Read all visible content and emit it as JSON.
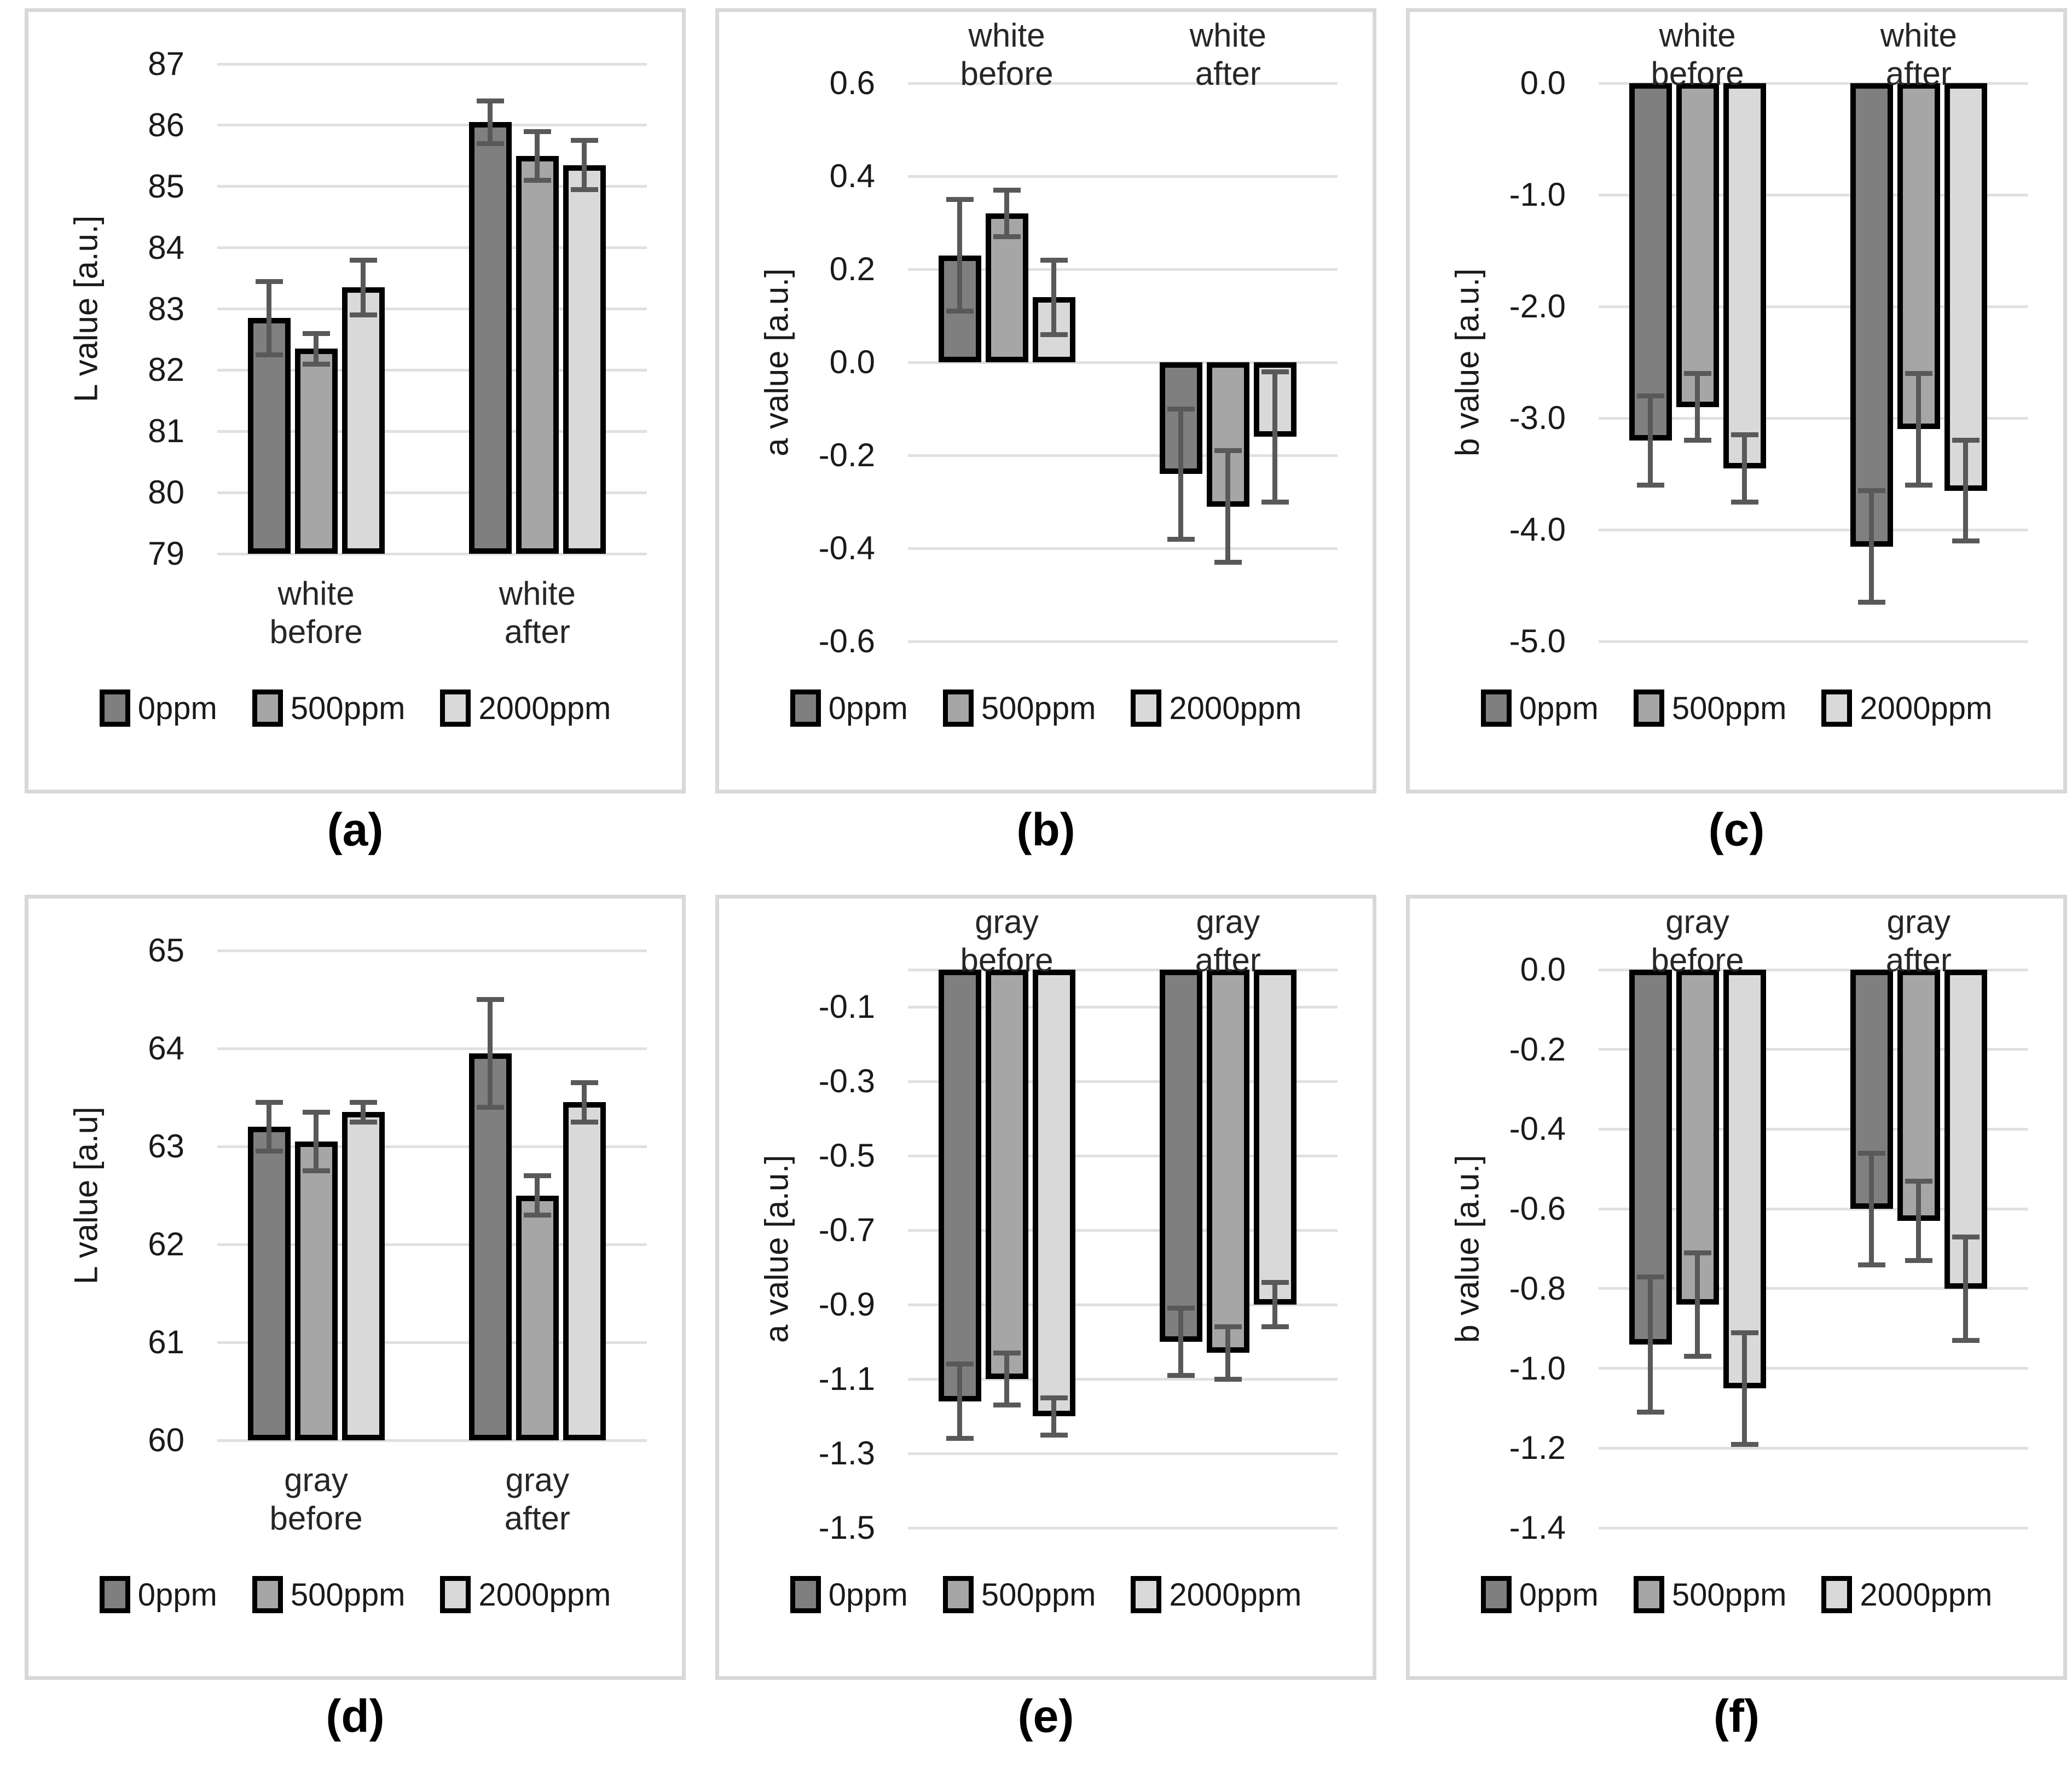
{
  "figure": {
    "rows": 2,
    "cols": 3,
    "panel_order": [
      "a",
      "b",
      "c",
      "d",
      "e",
      "f"
    ]
  },
  "palette": {
    "series_fills": [
      "#7f7f7f",
      "#a6a6a6",
      "#d9d9d9"
    ],
    "error_bar": "#595959",
    "gridline": "#e0e0e0",
    "bar_border": "#000000",
    "panel_border": "#d8d8d8",
    "background": "#ffffff"
  },
  "legend_labels": [
    "0ppm",
    "500ppm",
    "2000ppm"
  ],
  "chart_data": [
    {
      "id": "a",
      "type": "bar",
      "caption": "(a)",
      "ylabel": "L value [a.u.]",
      "categories": [
        "white before",
        "white after"
      ],
      "category_label_position": "bottom",
      "legend": [
        "0ppm",
        "500ppm",
        "2000ppm"
      ],
      "legend_position": "bottom",
      "grid": true,
      "ylim": [
        79,
        87
      ],
      "baseline": 79,
      "yticks": [
        {
          "v": 87,
          "label": "87"
        },
        {
          "v": 86,
          "label": "86"
        },
        {
          "v": 85,
          "label": "85"
        },
        {
          "v": 84,
          "label": "84"
        },
        {
          "v": 83,
          "label": "83"
        },
        {
          "v": 82,
          "label": "82"
        },
        {
          "v": 81,
          "label": "81"
        },
        {
          "v": 80,
          "label": "80"
        },
        {
          "v": 79,
          "label": "79"
        }
      ],
      "series": [
        {
          "name": "0ppm",
          "values": [
            82.85,
            86.05
          ],
          "errors": [
            0.6,
            0.35
          ]
        },
        {
          "name": "500ppm",
          "values": [
            82.35,
            85.5
          ],
          "errors": [
            0.25,
            0.4
          ]
        },
        {
          "name": "2000ppm",
          "values": [
            83.35,
            85.35
          ],
          "errors": [
            0.45,
            0.4
          ]
        }
      ]
    },
    {
      "id": "b",
      "type": "bar",
      "caption": "(b)",
      "ylabel": "a value [a.u.]",
      "categories": [
        "white before",
        "white after"
      ],
      "category_label_position": "top",
      "legend": [
        "0ppm",
        "500ppm",
        "2000ppm"
      ],
      "legend_position": "bottom",
      "grid": true,
      "ylim": [
        -0.6,
        0.6
      ],
      "baseline": 0,
      "yticks": [
        {
          "v": 0.6,
          "label": "0.6"
        },
        {
          "v": 0.4,
          "label": "0.4"
        },
        {
          "v": 0.2,
          "label": "0.2"
        },
        {
          "v": 0.0,
          "label": "0.0"
        },
        {
          "v": -0.2,
          "label": "-0.2"
        },
        {
          "v": -0.4,
          "label": "-0.4"
        },
        {
          "v": -0.6,
          "label": "-0.6"
        }
      ],
      "series": [
        {
          "name": "0ppm",
          "values": [
            0.23,
            -0.24
          ],
          "errors": [
            0.12,
            0.14
          ]
        },
        {
          "name": "500ppm",
          "values": [
            0.32,
            -0.31
          ],
          "errors": [
            0.05,
            0.12
          ]
        },
        {
          "name": "2000ppm",
          "values": [
            0.14,
            -0.16
          ],
          "errors": [
            0.08,
            0.14
          ]
        }
      ]
    },
    {
      "id": "c",
      "type": "bar",
      "caption": "(c)",
      "ylabel": "b value [a.u.]",
      "categories": [
        "white before",
        "white after"
      ],
      "category_label_position": "top",
      "legend": [
        "0ppm",
        "500ppm",
        "2000ppm"
      ],
      "legend_position": "bottom",
      "grid": true,
      "ylim": [
        -5.0,
        0.0
      ],
      "baseline": 0,
      "yticks": [
        {
          "v": 0.0,
          "label": "0.0"
        },
        {
          "v": -1.0,
          "label": "-1.0"
        },
        {
          "v": -2.0,
          "label": "-2.0"
        },
        {
          "v": -3.0,
          "label": "-3.0"
        },
        {
          "v": -4.0,
          "label": "-4.0"
        },
        {
          "v": -5.0,
          "label": "-5.0"
        }
      ],
      "series": [
        {
          "name": "0ppm",
          "values": [
            -3.2,
            -4.15
          ],
          "errors": [
            0.4,
            0.5
          ]
        },
        {
          "name": "500ppm",
          "values": [
            -2.9,
            -3.1
          ],
          "errors": [
            0.3,
            0.5
          ]
        },
        {
          "name": "2000ppm",
          "values": [
            -3.45,
            -3.65
          ],
          "errors": [
            0.3,
            0.45
          ]
        }
      ]
    },
    {
      "id": "d",
      "type": "bar",
      "caption": "(d)",
      "ylabel": "L value [a.u]",
      "categories": [
        "gray before",
        "gray after"
      ],
      "category_label_position": "bottom",
      "legend": [
        "0ppm",
        "500ppm",
        "2000ppm"
      ],
      "legend_position": "bottom",
      "grid": true,
      "ylim": [
        60,
        65
      ],
      "baseline": 60,
      "yticks": [
        {
          "v": 65,
          "label": "65"
        },
        {
          "v": 64,
          "label": "64"
        },
        {
          "v": 63,
          "label": "63"
        },
        {
          "v": 62,
          "label": "62"
        },
        {
          "v": 61,
          "label": "61"
        },
        {
          "v": 60,
          "label": "60"
        }
      ],
      "series": [
        {
          "name": "0ppm",
          "values": [
            63.2,
            63.95
          ],
          "errors": [
            0.25,
            0.55
          ]
        },
        {
          "name": "500ppm",
          "values": [
            63.05,
            62.5
          ],
          "errors": [
            0.3,
            0.2
          ]
        },
        {
          "name": "2000ppm",
          "values": [
            63.35,
            63.45
          ],
          "errors": [
            0.1,
            0.2
          ]
        }
      ]
    },
    {
      "id": "e",
      "type": "bar",
      "caption": "(e)",
      "ylabel": "a value [a.u.]",
      "categories": [
        "gray before",
        "gray after"
      ],
      "category_label_position": "top",
      "legend": [
        "0ppm",
        "500ppm",
        "2000ppm"
      ],
      "legend_position": "bottom",
      "grid": true,
      "ylim": [
        -1.5,
        0.0
      ],
      "baseline": 0,
      "yticks": [
        {
          "v": 0.0,
          "label": ""
        },
        {
          "v": -0.1,
          "label": "-0.1"
        },
        {
          "v": -0.3,
          "label": "-0.3"
        },
        {
          "v": -0.5,
          "label": "-0.5"
        },
        {
          "v": -0.7,
          "label": "-0.7"
        },
        {
          "v": -0.9,
          "label": "-0.9"
        },
        {
          "v": -1.1,
          "label": "-1.1"
        },
        {
          "v": -1.3,
          "label": "-1.3"
        },
        {
          "v": -1.5,
          "label": "-1.5"
        }
      ],
      "series": [
        {
          "name": "0ppm",
          "values": [
            -1.16,
            -1.0
          ],
          "errors": [
            0.1,
            0.09
          ]
        },
        {
          "name": "500ppm",
          "values": [
            -1.1,
            -1.03
          ],
          "errors": [
            0.07,
            0.07
          ]
        },
        {
          "name": "2000ppm",
          "values": [
            -1.2,
            -0.9
          ],
          "errors": [
            0.05,
            0.06
          ]
        }
      ]
    },
    {
      "id": "f",
      "type": "bar",
      "caption": "(f)",
      "ylabel": "b value [a.u.]",
      "categories": [
        "gray before",
        "gray after"
      ],
      "category_label_position": "top",
      "legend": [
        "0ppm",
        "500ppm",
        "2000ppm"
      ],
      "legend_position": "bottom",
      "grid": true,
      "ylim": [
        -1.4,
        0.0
      ],
      "baseline": 0,
      "yticks": [
        {
          "v": 0.0,
          "label": "0.0"
        },
        {
          "v": -0.2,
          "label": "-0.2"
        },
        {
          "v": -0.4,
          "label": "-0.4"
        },
        {
          "v": -0.6,
          "label": "-0.6"
        },
        {
          "v": -0.8,
          "label": "-0.8"
        },
        {
          "v": -1.0,
          "label": "-1.0"
        },
        {
          "v": -1.2,
          "label": "-1.2"
        },
        {
          "v": -1.4,
          "label": "-1.4"
        }
      ],
      "series": [
        {
          "name": "0ppm",
          "values": [
            -0.94,
            -0.6
          ],
          "errors": [
            0.17,
            0.14
          ]
        },
        {
          "name": "500ppm",
          "values": [
            -0.84,
            -0.63
          ],
          "errors": [
            0.13,
            0.1
          ]
        },
        {
          "name": "2000ppm",
          "values": [
            -1.05,
            -0.8
          ],
          "errors": [
            0.14,
            0.13
          ]
        }
      ]
    }
  ]
}
